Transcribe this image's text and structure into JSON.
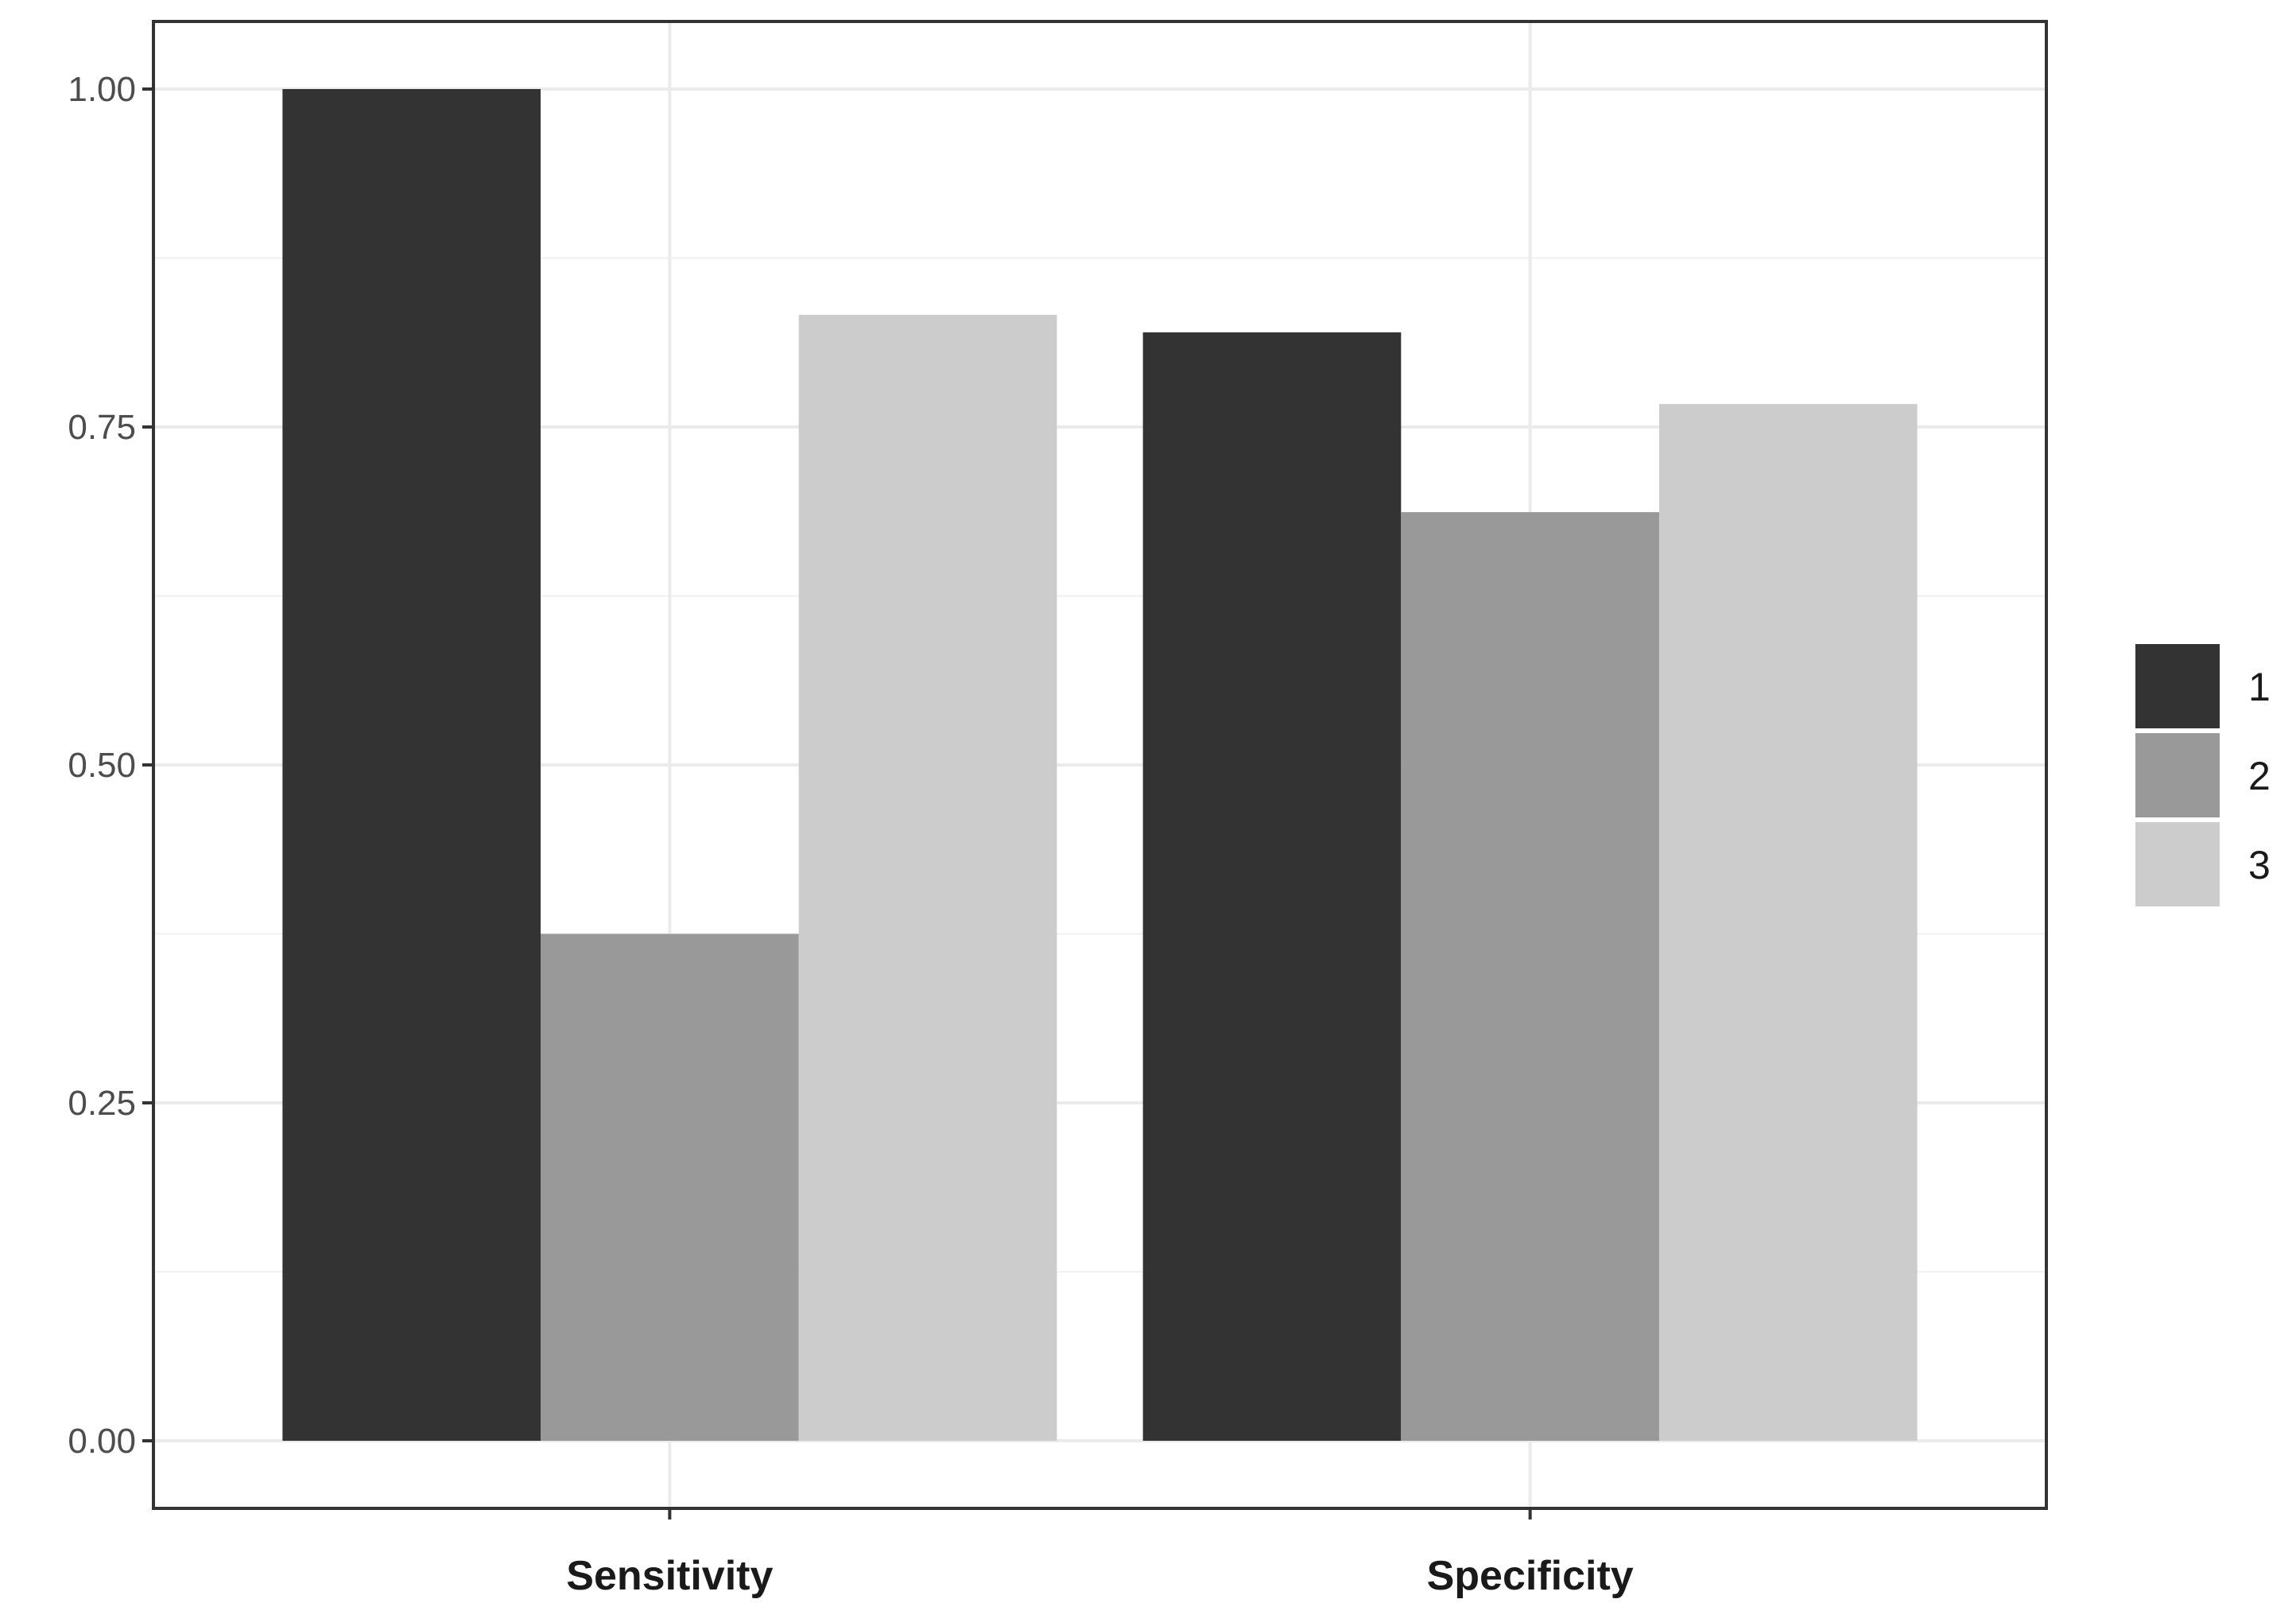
{
  "chart_data": {
    "type": "bar",
    "categories": [
      "Sensitivity",
      "Specificity"
    ],
    "series": [
      {
        "name": "1",
        "values": [
          1.0,
          0.82
        ],
        "color": "#333333"
      },
      {
        "name": "2",
        "values": [
          0.375,
          0.687
        ],
        "color": "#999999"
      },
      {
        "name": "3",
        "values": [
          0.833,
          0.767
        ],
        "color": "#cccccc"
      }
    ],
    "ylim": [
      -0.05,
      1.05
    ],
    "y_ticks": [
      0.0,
      0.25,
      0.5,
      0.75,
      1.0
    ],
    "y_tick_labels": [
      "0.00",
      "0.25",
      "0.50",
      "0.75",
      "1.00"
    ],
    "title": "",
    "xlabel": "",
    "ylabel": "",
    "grid": true,
    "legend_position": "right"
  }
}
